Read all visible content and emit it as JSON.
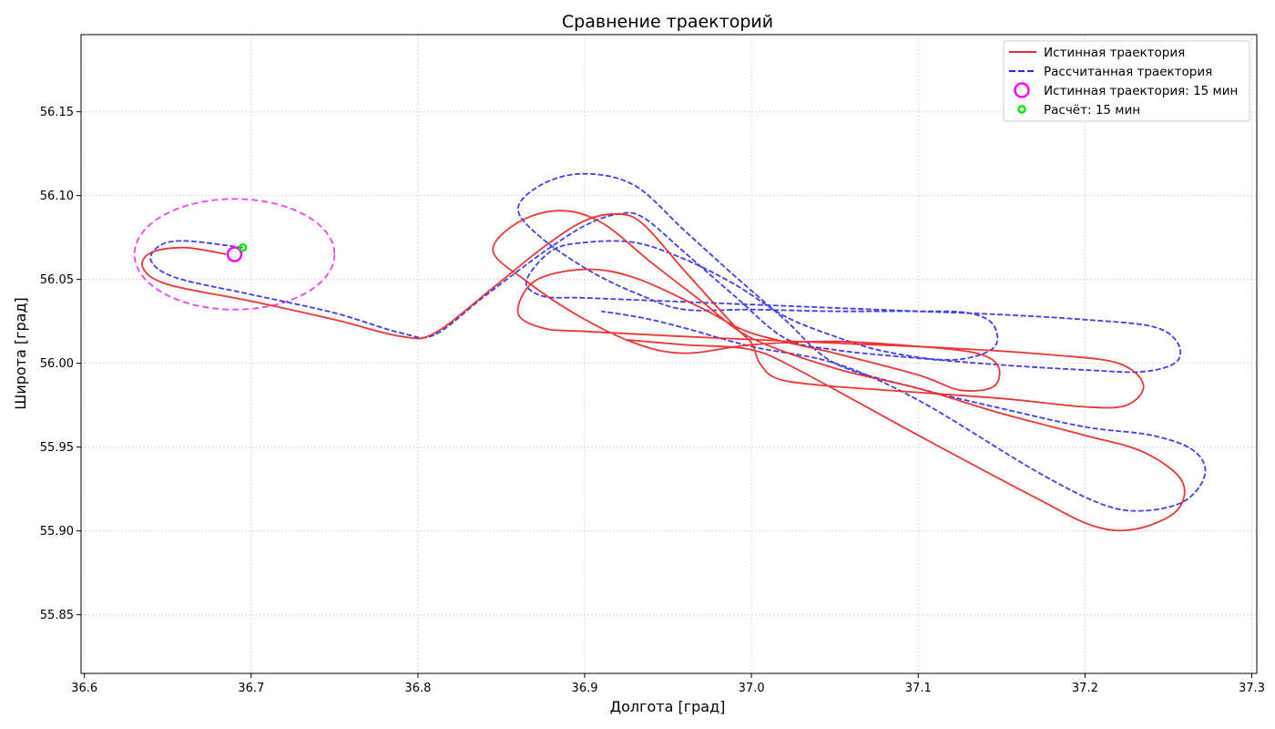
{
  "chart_data": {
    "type": "line",
    "title": "Сравнение траекторий",
    "xlabel": "Долгота [град]",
    "ylabel": "Широта [град]",
    "xlim": [
      36.598,
      37.303
    ],
    "ylim": [
      55.815,
      56.196
    ],
    "xticks": [
      "36.6",
      "36.7",
      "36.8",
      "36.9",
      "37.0",
      "37.1",
      "37.2",
      "37.3"
    ],
    "xtick_values": [
      36.6,
      36.7,
      36.8,
      36.9,
      37.0,
      37.1,
      37.2,
      37.3
    ],
    "yticks": [
      "55.85",
      "55.90",
      "55.95",
      "56.00",
      "56.05",
      "56.10",
      "56.15"
    ],
    "ytick_values": [
      55.85,
      55.9,
      55.95,
      56.0,
      56.05,
      56.1,
      56.15
    ],
    "grid": true,
    "legend_position": "top-right",
    "colors": {
      "true": "#ee2a2a",
      "est": "#2a2aee",
      "ellipse": "#ee44ee",
      "true_marker": "#ff00ff",
      "est_marker": "#00ee00"
    },
    "series": [
      {
        "name": "Истинная траектория",
        "style": "solid",
        "points": [
          [
            36.685,
            56.065
          ],
          [
            36.66,
            56.069
          ],
          [
            36.64,
            56.066
          ],
          [
            36.635,
            56.057
          ],
          [
            36.65,
            56.047
          ],
          [
            36.7,
            56.037
          ],
          [
            36.75,
            56.026
          ],
          [
            36.79,
            56.016
          ],
          [
            36.81,
            56.018
          ],
          [
            36.845,
            56.045
          ],
          [
            36.875,
            56.069
          ],
          [
            36.9,
            56.085
          ],
          [
            36.92,
            56.089
          ],
          [
            36.935,
            56.083
          ],
          [
            36.96,
            56.055
          ],
          [
            36.99,
            56.022
          ],
          [
            37.0,
            56.012
          ],
          [
            37.005,
            56.0
          ],
          [
            37.015,
            55.991
          ],
          [
            37.04,
            55.987
          ],
          [
            37.08,
            55.984
          ],
          [
            37.15,
            55.979
          ],
          [
            37.2,
            55.974
          ],
          [
            37.225,
            55.975
          ],
          [
            37.235,
            55.987
          ],
          [
            37.22,
            56.0
          ],
          [
            37.18,
            56.005
          ],
          [
            37.12,
            56.009
          ],
          [
            37.05,
            56.012
          ],
          [
            36.98,
            56.015
          ],
          [
            36.9,
            56.019
          ],
          [
            36.875,
            56.021
          ],
          [
            36.86,
            56.03
          ],
          [
            36.87,
            56.049
          ],
          [
            36.9,
            56.056
          ],
          [
            36.93,
            56.051
          ],
          [
            36.97,
            56.033
          ],
          [
            37.0,
            56.018
          ],
          [
            37.05,
            56.006
          ],
          [
            37.1,
            55.993
          ],
          [
            37.125,
            55.984
          ],
          [
            37.145,
            55.986
          ],
          [
            37.148,
            55.998
          ],
          [
            37.135,
            56.006
          ],
          [
            37.1,
            56.01
          ],
          [
            37.05,
            56.013
          ],
          [
            37.0,
            56.011
          ],
          [
            36.96,
            56.006
          ],
          [
            36.93,
            56.012
          ],
          [
            36.895,
            56.029
          ],
          [
            36.865,
            56.049
          ],
          [
            36.845,
            56.067
          ],
          [
            36.86,
            56.084
          ],
          [
            36.885,
            56.091
          ],
          [
            36.91,
            56.084
          ],
          [
            36.94,
            56.06
          ],
          [
            36.97,
            56.037
          ],
          [
            37.0,
            56.015
          ],
          [
            37.05,
            55.997
          ],
          [
            37.1,
            55.985
          ],
          [
            37.15,
            55.97
          ],
          [
            37.2,
            55.957
          ],
          [
            37.235,
            55.947
          ],
          [
            37.258,
            55.93
          ],
          [
            37.255,
            55.912
          ],
          [
            37.23,
            55.901
          ],
          [
            37.205,
            55.903
          ],
          [
            37.17,
            55.92
          ],
          [
            37.1,
            55.957
          ],
          [
            37.03,
            55.995
          ],
          [
            37.0,
            56.008
          ],
          [
            36.96,
            56.011
          ],
          [
            36.925,
            56.014
          ]
        ]
      },
      {
        "name": "Рассчитанная траектория",
        "style": "dashed",
        "points": [
          [
            36.695,
            56.069
          ],
          [
            36.66,
            56.073
          ],
          [
            36.645,
            56.07
          ],
          [
            36.64,
            56.061
          ],
          [
            36.655,
            56.051
          ],
          [
            36.7,
            56.041
          ],
          [
            36.75,
            56.03
          ],
          [
            36.79,
            56.018
          ],
          [
            36.81,
            56.017
          ],
          [
            36.84,
            56.04
          ],
          [
            36.875,
            56.066
          ],
          [
            36.9,
            56.082
          ],
          [
            36.92,
            56.089
          ],
          [
            36.935,
            56.087
          ],
          [
            36.96,
            56.066
          ],
          [
            36.99,
            56.04
          ],
          [
            37.02,
            56.015
          ],
          [
            37.05,
            56.008
          ],
          [
            37.1,
            56.003
          ],
          [
            37.15,
            55.999
          ],
          [
            37.2,
            55.996
          ],
          [
            37.235,
            55.995
          ],
          [
            37.255,
            56.001
          ],
          [
            37.255,
            56.013
          ],
          [
            37.24,
            56.022
          ],
          [
            37.2,
            56.026
          ],
          [
            37.15,
            56.029
          ],
          [
            37.1,
            56.031
          ],
          [
            37.05,
            56.033
          ],
          [
            37.0,
            56.035
          ],
          [
            36.95,
            56.037
          ],
          [
            36.9,
            56.039
          ],
          [
            36.875,
            56.04
          ],
          [
            36.865,
            56.049
          ],
          [
            36.88,
            56.067
          ],
          [
            36.9,
            56.072
          ],
          [
            36.93,
            56.072
          ],
          [
            36.96,
            56.062
          ],
          [
            36.99,
            56.047
          ],
          [
            37.02,
            56.028
          ],
          [
            37.05,
            56.016
          ],
          [
            37.08,
            56.007
          ],
          [
            37.12,
            56.002
          ],
          [
            37.145,
            56.009
          ],
          [
            37.145,
            56.023
          ],
          [
            37.13,
            56.03
          ],
          [
            37.1,
            56.031
          ],
          [
            37.05,
            56.031
          ],
          [
            37.0,
            56.032
          ],
          [
            36.96,
            56.032
          ],
          [
            36.935,
            56.04
          ],
          [
            36.905,
            56.054
          ],
          [
            36.875,
            56.074
          ],
          [
            36.86,
            56.092
          ],
          [
            36.875,
            56.107
          ],
          [
            36.9,
            56.113
          ],
          [
            36.93,
            56.106
          ],
          [
            36.96,
            56.079
          ],
          [
            36.99,
            56.052
          ],
          [
            37.02,
            56.026
          ],
          [
            37.05,
            56.0
          ],
          [
            37.1,
            55.985
          ],
          [
            37.15,
            55.973
          ],
          [
            37.2,
            55.962
          ],
          [
            37.24,
            55.957
          ],
          [
            37.265,
            55.948
          ],
          [
            37.272,
            55.934
          ],
          [
            37.26,
            55.918
          ],
          [
            37.235,
            55.912
          ],
          [
            37.21,
            55.916
          ],
          [
            37.17,
            55.936
          ],
          [
            37.1,
            55.978
          ],
          [
            37.05,
            56.0
          ],
          [
            37.0,
            56.01
          ],
          [
            36.96,
            56.021
          ],
          [
            36.935,
            56.027
          ],
          [
            36.91,
            56.031
          ]
        ]
      }
    ],
    "ellipse": {
      "center": [
        36.69,
        56.065
      ],
      "rx": 0.06,
      "ry": 0.033
    },
    "markers": [
      {
        "name": "Истинная траектория: 15 мин",
        "point": [
          36.69,
          56.065
        ],
        "shape": "ring-large"
      },
      {
        "name": "Расчёт: 15 мин",
        "point": [
          36.695,
          56.069
        ],
        "shape": "ring-small"
      }
    ],
    "legend": [
      {
        "label": "Истинная траектория",
        "kind": "line-solid"
      },
      {
        "label": "Рассчитанная траектория",
        "kind": "line-dashed"
      },
      {
        "label": "Истинная траектория: 15 мин",
        "kind": "ring-large"
      },
      {
        "label": "Расчёт: 15 мин",
        "kind": "ring-small"
      }
    ]
  }
}
